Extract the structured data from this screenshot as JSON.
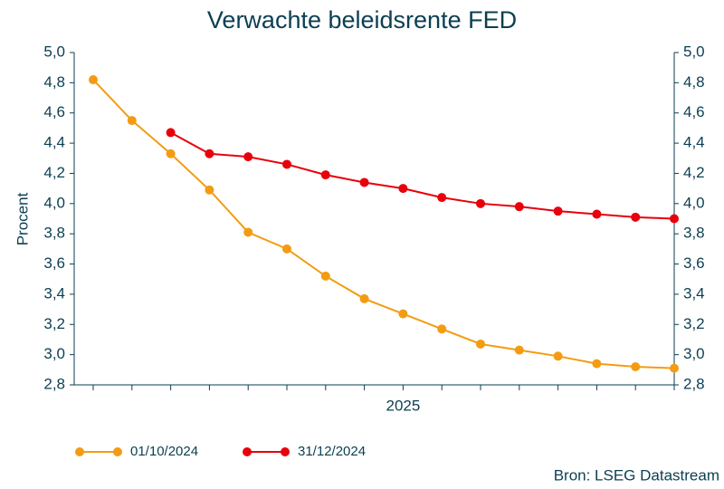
{
  "chart_data": {
    "type": "line",
    "title": "Verwachte beleidsrente FED",
    "y_label": "Procent",
    "source": "Bron: LSEG Datastream",
    "categories": [
      null,
      null,
      null,
      null,
      null,
      null,
      null,
      null,
      "2025",
      null,
      null,
      null,
      null,
      null,
      null,
      null
    ],
    "series": [
      {
        "name": "01/10/2024",
        "color": "#f39c12",
        "values": [
          4.82,
          4.55,
          4.33,
          4.09,
          3.81,
          3.7,
          3.52,
          3.37,
          3.27,
          3.17,
          3.07,
          3.03,
          2.99,
          2.94,
          2.92,
          2.91
        ]
      },
      {
        "name": "31/12/2024",
        "color": "#e8000b",
        "values": [
          null,
          null,
          4.47,
          4.33,
          4.31,
          4.26,
          4.19,
          4.14,
          4.1,
          4.04,
          4.0,
          3.98,
          3.95,
          3.93,
          3.91,
          3.9
        ]
      }
    ],
    "ylim": [
      2.8,
      5.0
    ],
    "yticks": [
      {
        "value": 2.8,
        "label": "2,8"
      },
      {
        "value": 3.0,
        "label": "3,0"
      },
      {
        "value": 3.2,
        "label": "3,2"
      },
      {
        "value": 3.4,
        "label": "3,4"
      },
      {
        "value": 3.6,
        "label": "3,6"
      },
      {
        "value": 3.8,
        "label": "3,8"
      },
      {
        "value": 4.0,
        "label": "4,0"
      },
      {
        "value": 4.2,
        "label": "4,2"
      },
      {
        "value": 4.4,
        "label": "4,4"
      },
      {
        "value": 4.6,
        "label": "4,6"
      },
      {
        "value": 4.8,
        "label": "4,8"
      },
      {
        "value": 5.0,
        "label": "5,0"
      }
    ],
    "y2lim": [
      2.8,
      5.0
    ],
    "y2ticks": [
      {
        "value": 2.8,
        "label": "2,8"
      },
      {
        "value": 3.0,
        "label": "3,0"
      },
      {
        "value": 3.2,
        "label": "3,2"
      },
      {
        "value": 3.4,
        "label": "3,4"
      },
      {
        "value": 3.6,
        "label": "3,6"
      },
      {
        "value": 3.8,
        "label": "3,8"
      },
      {
        "value": 4.0,
        "label": "4,0"
      },
      {
        "value": 4.2,
        "label": "4,2"
      },
      {
        "value": 4.4,
        "label": "4,4"
      },
      {
        "value": 4.6,
        "label": "4,6"
      },
      {
        "value": 4.8,
        "label": "4,8"
      },
      {
        "value": 5.0,
        "label": "5,0"
      }
    ],
    "grid": false,
    "legend": "bottom"
  }
}
